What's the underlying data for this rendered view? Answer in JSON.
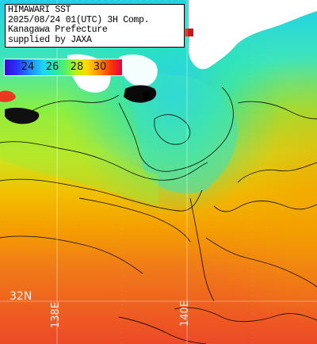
{
  "title": {
    "line1": "HIMAWARI SST",
    "line2": "2025/08/24 01(UTC) 3H Comp.",
    "line3": "Kanagawa Prefecture",
    "line4": "supplied by JAXA"
  },
  "colorbar": {
    "labels": [
      "24",
      "26",
      "28",
      "30"
    ]
  },
  "graticule": {
    "lat_labels": [
      "32N"
    ],
    "lon_labels": [
      "138E",
      "140E"
    ]
  },
  "colors": {
    "land": "#ffffff",
    "cloud_mask": "#ffffff",
    "contour": "#000000",
    "grid": "#ffffff",
    "warm_sea": "#f06a2a",
    "mid_sea": "#f0c000",
    "cool_sea": "#30e0c8",
    "coastal_sea": "#1ec8f0"
  }
}
